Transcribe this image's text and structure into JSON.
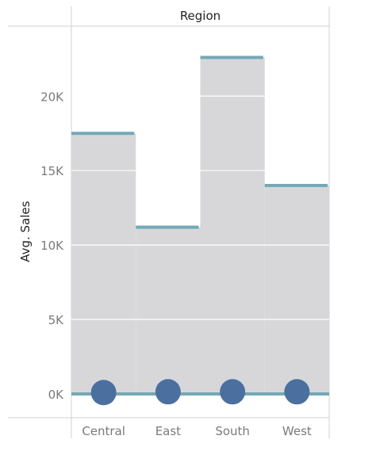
{
  "chart_data": {
    "type": "bar",
    "column_header": "Region",
    "ylabel": "Avg. Sales",
    "categories": [
      "Central",
      "East",
      "South",
      "West"
    ],
    "values": [
      17500,
      11200,
      22600,
      14000
    ],
    "marker_values": [
      250,
      300,
      300,
      300
    ],
    "reference_line": 0,
    "ylim": [
      -1600,
      24700
    ],
    "yticks": [
      0,
      5000,
      10000,
      15000,
      20000
    ],
    "ytick_labels": [
      "0K",
      "5K",
      "10K",
      "15K",
      "20K"
    ],
    "grid": true,
    "colors": {
      "bar_fill": "#d7d7da",
      "bar_top_line": "#74a9b6",
      "zero_line": "#74a9b6",
      "marker": "#4b6f9f",
      "gridline": "#ffffff",
      "frame": "#d0d0d0",
      "tick_text": "#7a7a7a",
      "title_text": "#222222"
    }
  }
}
